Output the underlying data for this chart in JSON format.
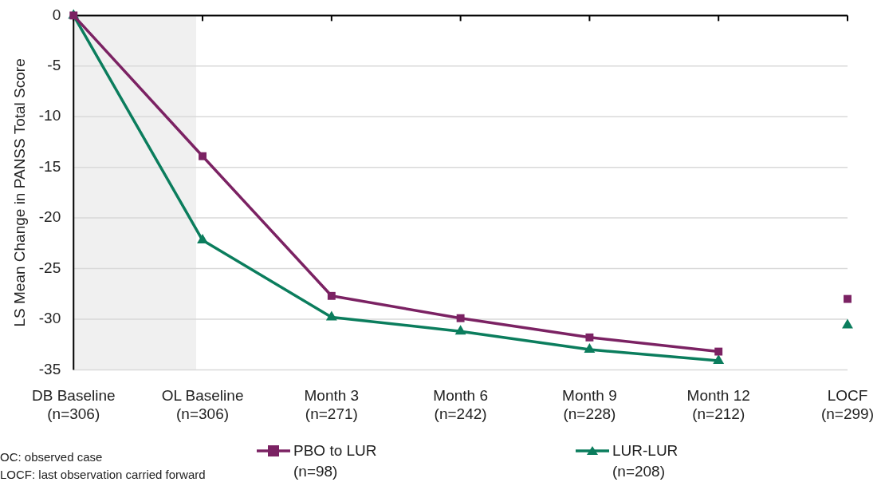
{
  "chart_data": {
    "type": "line",
    "ylabel": "LS Mean Change in PANSS Total Score",
    "categories": [
      "DB Baseline\n(n=306)",
      "OL Baseline\n(n=306)",
      "Month 3\n(n=271)",
      "Month 6\n(n=242)",
      "Month 9\n(n=228)",
      "Month 12\n(n=212)",
      "LOCF\n(n=299)"
    ],
    "series": [
      {
        "name": "PBO to LUR\n(n=98)",
        "color": "#7b2263",
        "marker": "square",
        "values": [
          0,
          -13.9,
          -27.7,
          -29.9,
          -31.8,
          -33.2,
          null
        ]
      },
      {
        "name": "LUR-LUR\n(n=208)",
        "color": "#0b7d5d",
        "marker": "triangle",
        "values": [
          0,
          -22.2,
          -29.8,
          -31.2,
          -33.0,
          -34.1,
          null
        ]
      },
      {
        "type": "scatter",
        "color": "#7b2263",
        "marker": "square",
        "x": [
          "LOCF\n(n=299)"
        ],
        "values": [
          -28.0
        ]
      },
      {
        "type": "scatter",
        "color": "#0b7d5d",
        "marker": "triangle",
        "x": [
          "LOCF\n(n=299)"
        ],
        "values": [
          -30.6
        ]
      }
    ],
    "ylim": [
      -35,
      0
    ],
    "yticks": [
      -35,
      -30,
      -25,
      -20,
      -15,
      -10,
      -5,
      0
    ],
    "grid": "y",
    "legend": "bottom",
    "line_style": "solid",
    "bands": [
      {
        "axis": "x",
        "from": "DB Baseline\n(n=306)",
        "to": "OL Baseline\n(n=306)",
        "color": "#f0f0f0"
      }
    ],
    "annotations": [
      "OC: observed case",
      "LOCF: last observation carried forward"
    ]
  }
}
